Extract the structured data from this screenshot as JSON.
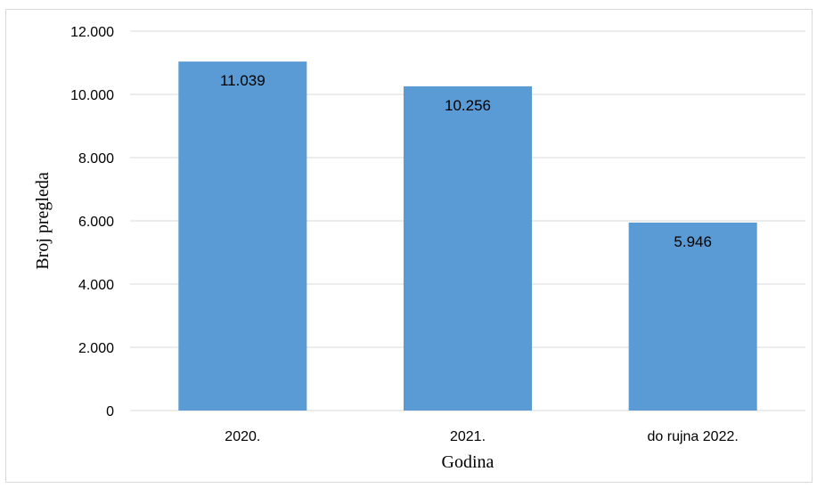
{
  "chart_data": {
    "type": "bar",
    "categories": [
      "2020.",
      "2021.",
      "do rujna 2022."
    ],
    "values": [
      11039,
      10256,
      5946
    ],
    "data_labels": [
      "11.039",
      "10.256",
      "5.946"
    ],
    "title": "",
    "xlabel": "Godina",
    "ylabel": "Broj pregleda",
    "ylim": [
      0,
      12000
    ],
    "yticks": [
      0,
      2000,
      4000,
      6000,
      8000,
      10000,
      12000
    ],
    "ytick_labels": [
      "0",
      "2.000",
      "4.000",
      "6.000",
      "8.000",
      "10.000",
      "12.000"
    ],
    "grid": true,
    "legend": "none",
    "bar_color": "#5b9bd5",
    "grid_color": "#d9d9d9"
  }
}
